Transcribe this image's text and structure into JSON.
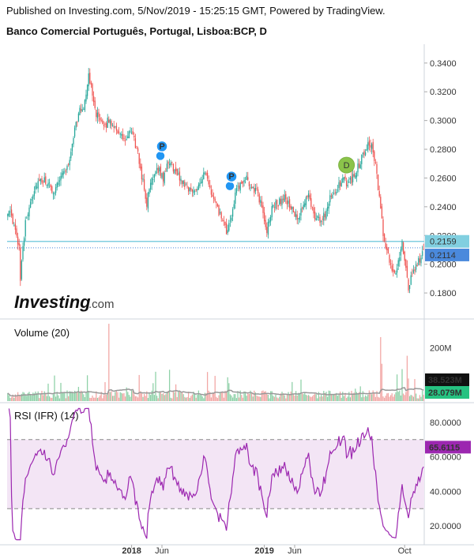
{
  "header": {
    "published": "Published on Investing.com, 5/Nov/2019 - 15:25:15 GMT, Powered by TradingView.",
    "symbol": "Banco Comercial Português, Portugal, Lisboa:BCP, D"
  },
  "logo": {
    "main": "Investing",
    "suffix": ".com"
  },
  "x_axis": {
    "labels": [
      "2018",
      "Jun",
      "2019",
      "Jun",
      "Oct"
    ]
  },
  "colors": {
    "up": "#26a69a",
    "down": "#ef5350",
    "rsi": "#9c27b0",
    "rsi_band": "#f3e5f5",
    "price_tag": "#4a89dc",
    "level_tag": "#81cfe0",
    "vol_ma": "#999999",
    "dividend": "#8bc34a",
    "split": "#2196f3"
  },
  "chart_data": [
    {
      "type": "candlestick",
      "title": "Banco Comercial Português, Portugal, Lisboa:BCP, D",
      "ylim": [
        0.163,
        0.352
      ],
      "y_ticks": [
        "0.3400",
        "0.3200",
        "0.3000",
        "0.2800",
        "0.2600",
        "0.2400",
        "0.2200",
        "0.2000",
        "0.1800"
      ],
      "last_price": "0.2114",
      "horizontal_level": "0.2159",
      "anchors": [
        [
          0,
          0.238
        ],
        [
          3,
          0.232
        ],
        [
          6,
          0.222
        ],
        [
          9,
          0.213
        ],
        [
          10,
          0.19
        ],
        [
          11,
          0.205
        ],
        [
          14,
          0.228
        ],
        [
          18,
          0.245
        ],
        [
          23,
          0.256
        ],
        [
          30,
          0.258
        ],
        [
          36,
          0.25
        ],
        [
          42,
          0.262
        ],
        [
          48,
          0.268
        ],
        [
          52,
          0.29
        ],
        [
          56,
          0.305
        ],
        [
          60,
          0.31
        ],
        [
          64,
          0.33
        ],
        [
          67,
          0.32
        ],
        [
          70,
          0.305
        ],
        [
          75,
          0.295
        ],
        [
          80,
          0.3
        ],
        [
          85,
          0.296
        ],
        [
          90,
          0.288
        ],
        [
          94,
          0.286
        ],
        [
          98,
          0.293
        ],
        [
          102,
          0.28
        ],
        [
          106,
          0.262
        ],
        [
          110,
          0.242
        ],
        [
          113,
          0.257
        ],
        [
          118,
          0.268
        ],
        [
          123,
          0.26
        ],
        [
          128,
          0.272
        ],
        [
          134,
          0.262
        ],
        [
          140,
          0.256
        ],
        [
          146,
          0.25
        ],
        [
          151,
          0.256
        ],
        [
          156,
          0.263
        ],
        [
          160,
          0.252
        ],
        [
          165,
          0.24
        ],
        [
          170,
          0.23
        ],
        [
          173,
          0.222
        ],
        [
          176,
          0.228
        ],
        [
          180,
          0.25
        ],
        [
          184,
          0.254
        ],
        [
          188,
          0.26
        ],
        [
          192,
          0.255
        ],
        [
          197,
          0.25
        ],
        [
          202,
          0.237
        ],
        [
          205,
          0.222
        ],
        [
          209,
          0.24
        ],
        [
          214,
          0.243
        ],
        [
          219,
          0.246
        ],
        [
          224,
          0.24
        ],
        [
          229,
          0.23
        ],
        [
          234,
          0.24
        ],
        [
          238,
          0.25
        ],
        [
          241,
          0.238
        ],
        [
          244,
          0.232
        ],
        [
          247,
          0.23
        ],
        [
          251,
          0.235
        ],
        [
          255,
          0.248
        ],
        [
          260,
          0.252
        ],
        [
          265,
          0.258
        ],
        [
          270,
          0.256
        ],
        [
          274,
          0.262
        ],
        [
          278,
          0.27
        ],
        [
          282,
          0.278
        ],
        [
          285,
          0.285
        ],
        [
          288,
          0.283
        ],
        [
          291,
          0.268
        ],
        [
          294,
          0.245
        ],
        [
          297,
          0.222
        ],
        [
          300,
          0.207
        ],
        [
          303,
          0.2
        ],
        [
          306,
          0.193
        ],
        [
          309,
          0.202
        ],
        [
          312,
          0.213
        ],
        [
          315,
          0.198
        ],
        [
          317,
          0.182
        ],
        [
          320,
          0.193
        ],
        [
          323,
          0.199
        ],
        [
          326,
          0.203
        ],
        [
          329,
          0.213
        ]
      ],
      "events": [
        {
          "label": "P",
          "bar": 122,
          "value": 0.282
        },
        {
          "label": "P",
          "bar": 177,
          "value": 0.261
        },
        {
          "label": "D",
          "bar": 268,
          "value": 0.269
        }
      ]
    },
    {
      "type": "bar",
      "title": "Volume (20)",
      "ylim": [
        0,
        305
      ],
      "y_ticks": [
        "200M"
      ],
      "last_volume": "28.079M",
      "volume_ma": "38.523M",
      "baseline_M": 25,
      "spikes_M": [
        [
          80,
          290
        ],
        [
          117,
          110
        ],
        [
          295,
          240
        ],
        [
          296,
          140
        ],
        [
          308,
          100
        ],
        [
          312,
          120
        ],
        [
          316,
          170
        ]
      ]
    },
    {
      "type": "line",
      "title": "RSI (IFR) (14)",
      "ylim": [
        10,
        90
      ],
      "band": [
        30,
        70
      ],
      "y_ticks": [
        "80.0000",
        "60.0000",
        "40.0000",
        "20.0000"
      ],
      "last_value": "65.6115"
    }
  ]
}
